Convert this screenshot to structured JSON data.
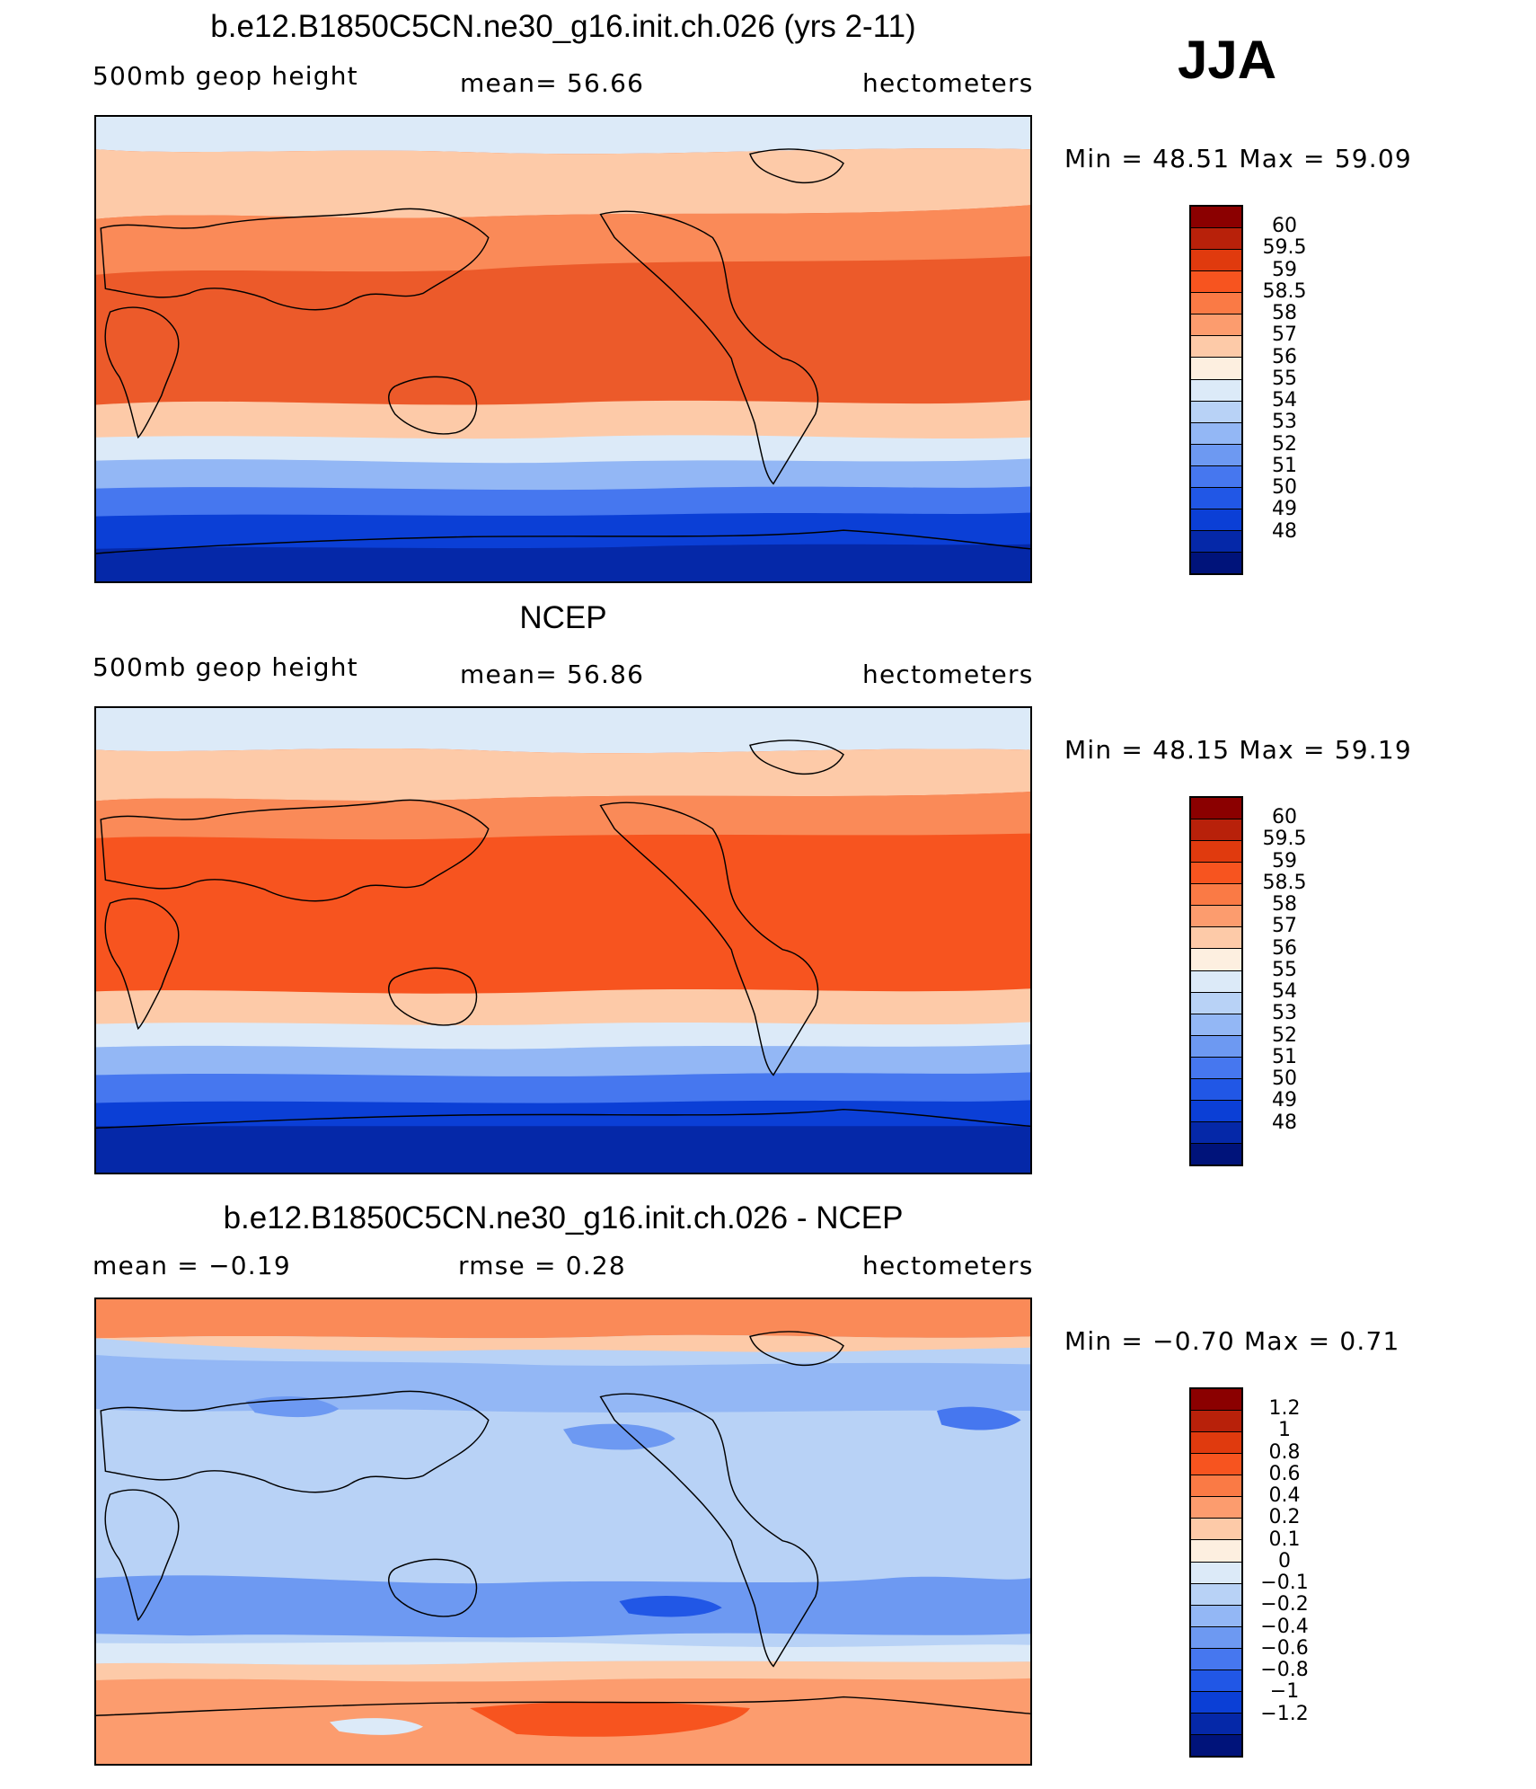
{
  "season": "JJA",
  "panels": [
    {
      "title": "b.e12.B1850C5CN.ne30_g16.init.ch.026 (yrs 2-11)",
      "left": "500mb  geop  height",
      "center": "mean=   56.66",
      "right": "hectometers",
      "minmax": "Min  =    48.51  Max  =    59.09",
      "map": "model-500mb-geopotential-height-map",
      "colorbar": {
        "colors": [
          "#8b0000",
          "#b8210a",
          "#e03a0e",
          "#f7541f",
          "#fa7a45",
          "#fc9c6e",
          "#fdcaa8",
          "#fdefe0",
          "#dceaf8",
          "#b8d2f6",
          "#93b7f5",
          "#6d99f2",
          "#4677ef",
          "#2157e6",
          "#0b3fd6",
          "#0528a8",
          "#00137a"
        ],
        "labels": [
          "60",
          "59.5",
          "59",
          "58.5",
          "58",
          "57",
          "56",
          "55",
          "54",
          "53",
          "52",
          "51",
          "50",
          "49",
          "48"
        ]
      }
    },
    {
      "title": "NCEP",
      "left": "500mb  geop  height",
      "center": "mean=   56.86",
      "right": "hectometers",
      "minmax": "Min  =    48.15  Max  =    59.19",
      "map": "ncep-500mb-geopotential-height-map",
      "colorbar": {
        "colors": [
          "#8b0000",
          "#b8210a",
          "#e03a0e",
          "#f7541f",
          "#fa7a45",
          "#fc9c6e",
          "#fdcaa8",
          "#fdefe0",
          "#dceaf8",
          "#b8d2f6",
          "#93b7f5",
          "#6d99f2",
          "#4677ef",
          "#2157e6",
          "#0b3fd6",
          "#0528a8",
          "#00137a"
        ],
        "labels": [
          "60",
          "59.5",
          "59",
          "58.5",
          "58",
          "57",
          "56",
          "55",
          "54",
          "53",
          "52",
          "51",
          "50",
          "49",
          "48"
        ]
      }
    },
    {
      "title": "b.e12.B1850C5CN.ne30_g16.init.ch.026 - NCEP",
      "left": "mean  =    −0.19",
      "center": "rmse  =     0.28",
      "right": "hectometers",
      "minmax": "Min  =   −0.70  Max  =     0.71",
      "map": "difference-500mb-geopotential-height-map",
      "colorbar": {
        "colors": [
          "#8b0000",
          "#b8210a",
          "#e03a0e",
          "#f7541f",
          "#fa7a45",
          "#fc9c6e",
          "#fdcaa8",
          "#fdefe0",
          "#dceaf8",
          "#b8d2f6",
          "#93b7f5",
          "#6d99f2",
          "#4677ef",
          "#2157e6",
          "#0b3fd6",
          "#0528a8",
          "#00137a"
        ],
        "labels": [
          "1.2",
          "1",
          "0.8",
          "0.6",
          "0.4",
          "0.2",
          "0.1",
          "0",
          "−0.1",
          "−0.2",
          "−0.4",
          "−0.6",
          "−0.8",
          "−1",
          "−1.2"
        ]
      }
    }
  ]
}
